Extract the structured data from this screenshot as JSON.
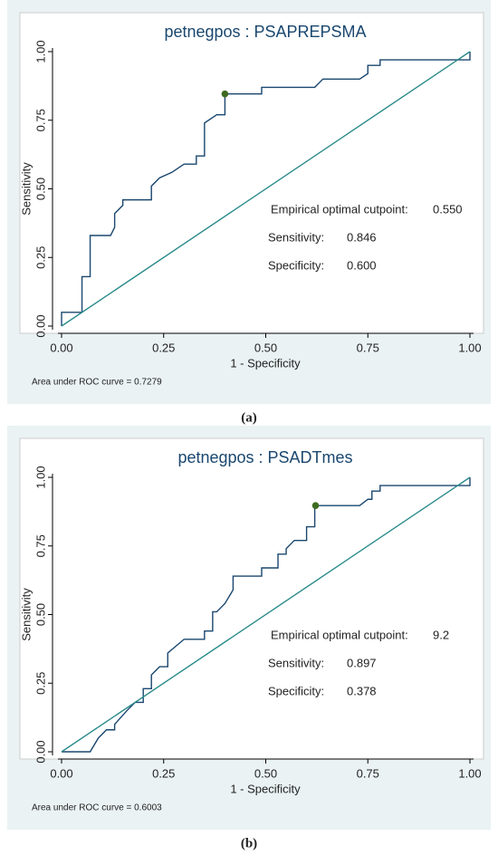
{
  "chart_data": [
    {
      "type": "line",
      "title": "petnegpos : PSAPREPSMA",
      "xlabel": "1 - Specificity",
      "ylabel": "Sensitivity",
      "xlim": [
        0,
        1
      ],
      "ylim": [
        0,
        1
      ],
      "xticks": [
        {
          "value": 0,
          "label": "0.00"
        },
        {
          "value": 0.25,
          "label": "0.25"
        },
        {
          "value": 0.5,
          "label": "0.50"
        },
        {
          "value": 0.75,
          "label": "0.75"
        },
        {
          "value": 1,
          "label": "1.00"
        }
      ],
      "yticks": [
        {
          "value": 0,
          "label": "0.00"
        },
        {
          "value": 0.25,
          "label": "0.25"
        },
        {
          "value": 0.5,
          "label": "0.50"
        },
        {
          "value": 0.75,
          "label": "0.75"
        },
        {
          "value": 1,
          "label": "1.00"
        }
      ],
      "series": [
        {
          "color": "#1a476f",
          "x": [
            0,
            0,
            0.05,
            0.05,
            0.07,
            0.07,
            0.12,
            0.13,
            0.13,
            0.15,
            0.15,
            0.22,
            0.22,
            0.24,
            0.27,
            0.3,
            0.33,
            0.33,
            0.35,
            0.35,
            0.38,
            0.4,
            0.4,
            0.49,
            0.49,
            0.62,
            0.64,
            0.73,
            0.75,
            0.75,
            0.78,
            0.78,
            1,
            1
          ],
          "values": [
            0,
            0.05,
            0.05,
            0.18,
            0.18,
            0.33,
            0.33,
            0.36,
            0.41,
            0.44,
            0.46,
            0.46,
            0.51,
            0.54,
            0.56,
            0.59,
            0.59,
            0.62,
            0.62,
            0.74,
            0.77,
            0.77,
            0.846,
            0.846,
            0.87,
            0.87,
            0.9,
            0.9,
            0.92,
            0.95,
            0.95,
            0.97,
            0.97,
            1
          ]
        },
        {
          "color": "#2a8a8a",
          "x": [
            0,
            1
          ],
          "values": [
            0,
            1
          ]
        }
      ],
      "marker": {
        "color": "#3d6b1f",
        "x": 0.4,
        "value": 0.846
      },
      "annotations": [
        [
          "Empirical optimal cutpoint:",
          "0.550"
        ],
        [
          "Sensitivity:",
          "0.846"
        ],
        [
          "Specificity:",
          "0.600"
        ]
      ],
      "note": "Area under ROC curve = 0.7279",
      "caption": "(a)"
    },
    {
      "type": "line",
      "title": "petnegpos : PSADTmes",
      "xlabel": "1 - Specificity",
      "ylabel": "Sensitivity",
      "xlim": [
        0,
        1
      ],
      "ylim": [
        0,
        1
      ],
      "xticks": [
        {
          "value": 0,
          "label": "0.00"
        },
        {
          "value": 0.25,
          "label": "0.25"
        },
        {
          "value": 0.5,
          "label": "0.50"
        },
        {
          "value": 0.75,
          "label": "0.75"
        },
        {
          "value": 1,
          "label": "1.00"
        }
      ],
      "yticks": [
        {
          "value": 0,
          "label": "0.00"
        },
        {
          "value": 0.25,
          "label": "0.25"
        },
        {
          "value": 0.5,
          "label": "0.50"
        },
        {
          "value": 0.75,
          "label": "0.75"
        },
        {
          "value": 1,
          "label": "1.00"
        }
      ],
      "series": [
        {
          "color": "#1a476f",
          "x": [
            0,
            0.07,
            0.09,
            0.11,
            0.13,
            0.13,
            0.16,
            0.18,
            0.2,
            0.2,
            0.22,
            0.22,
            0.24,
            0.26,
            0.26,
            0.3,
            0.35,
            0.35,
            0.37,
            0.37,
            0.38,
            0.4,
            0.42,
            0.42,
            0.49,
            0.49,
            0.53,
            0.53,
            0.55,
            0.55,
            0.57,
            0.6,
            0.6,
            0.62,
            0.62,
            0.73,
            0.75,
            0.76,
            0.76,
            0.78,
            0.78,
            1,
            1
          ],
          "values": [
            0,
            0,
            0.05,
            0.08,
            0.08,
            0.1,
            0.15,
            0.18,
            0.18,
            0.23,
            0.23,
            0.28,
            0.31,
            0.31,
            0.36,
            0.41,
            0.41,
            0.44,
            0.44,
            0.51,
            0.51,
            0.54,
            0.59,
            0.64,
            0.64,
            0.67,
            0.67,
            0.72,
            0.72,
            0.74,
            0.77,
            0.77,
            0.82,
            0.82,
            0.897,
            0.897,
            0.92,
            0.92,
            0.95,
            0.95,
            0.97,
            0.97,
            1
          ]
        },
        {
          "color": "#2a8a8a",
          "x": [
            0,
            1
          ],
          "values": [
            0,
            1
          ]
        }
      ],
      "marker": {
        "color": "#3d6b1f",
        "x": 0.622,
        "value": 0.897
      },
      "annotations": [
        [
          "Empirical optimal cutpoint:",
          "9.2"
        ],
        [
          "Sensitivity:",
          "0.897"
        ],
        [
          "Specificity:",
          "0.378"
        ]
      ],
      "note": "Area under ROC curve = 0.6003",
      "caption": "(b)"
    }
  ]
}
